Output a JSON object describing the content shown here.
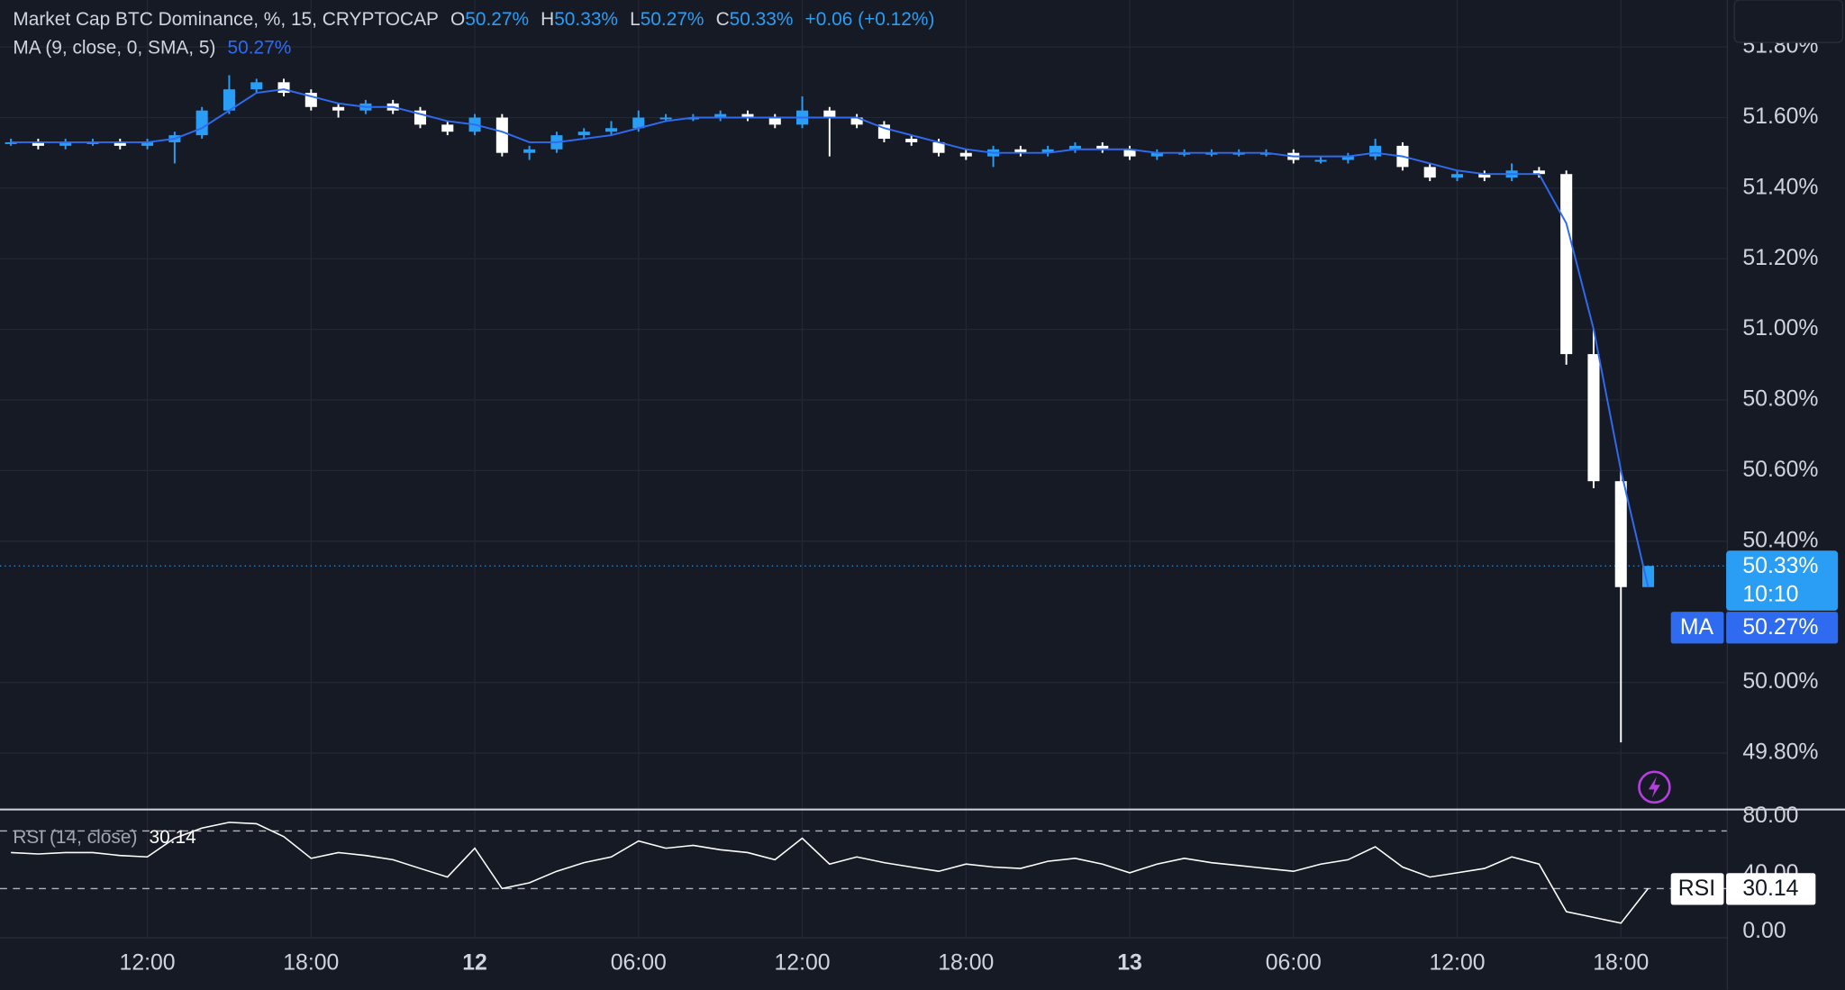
{
  "chart_data": {
    "type": "candlestick",
    "title": "Market Cap BTC Dominance, %, 15, CRYPTOCAP",
    "ohlc_legend": [
      {
        "label": "O",
        "value": "50.27%"
      },
      {
        "label": "H",
        "value": "50.33%"
      },
      {
        "label": "L",
        "value": "50.27%"
      },
      {
        "label": "C",
        "value": "50.33%"
      }
    ],
    "change": "+0.06 (+0.12%)",
    "up_color": "#2a9df4",
    "down_color": "#ffffff",
    "grid": true,
    "x": [
      7,
      8,
      9,
      10,
      11,
      12,
      13,
      14,
      15,
      16,
      17,
      18,
      19,
      20,
      21,
      22,
      23,
      24,
      25,
      26,
      27,
      28,
      29,
      30,
      31,
      32,
      33,
      34,
      35,
      36,
      37,
      38,
      39,
      40,
      41,
      42,
      43,
      44,
      45,
      46,
      47,
      48,
      49,
      50,
      51,
      52,
      53,
      54,
      55,
      56,
      57,
      58,
      59,
      60,
      61,
      62,
      63,
      64,
      65,
      66,
      67
    ],
    "open": [
      51.53,
      51.53,
      51.52,
      51.53,
      51.53,
      51.52,
      51.53,
      51.55,
      51.62,
      51.68,
      51.7,
      51.67,
      51.63,
      51.62,
      51.64,
      51.62,
      51.58,
      51.56,
      51.6,
      51.5,
      51.51,
      51.55,
      51.56,
      51.57,
      51.6,
      51.6,
      51.6,
      51.61,
      51.6,
      51.58,
      51.62,
      51.6,
      51.58,
      51.54,
      51.53,
      51.5,
      51.49,
      51.51,
      51.5,
      51.51,
      51.52,
      51.51,
      51.49,
      51.5,
      51.5,
      51.5,
      51.5,
      51.5,
      51.48,
      51.48,
      51.49,
      51.52,
      51.46,
      51.43,
      51.44,
      51.43,
      51.45,
      51.44,
      50.93,
      50.57,
      50.27
    ],
    "high": [
      51.54,
      51.54,
      51.54,
      51.54,
      51.54,
      51.54,
      51.56,
      51.63,
      51.72,
      51.71,
      51.71,
      51.68,
      51.64,
      51.65,
      51.65,
      51.63,
      51.59,
      51.61,
      51.61,
      51.52,
      51.56,
      51.57,
      51.59,
      51.62,
      51.61,
      51.61,
      51.62,
      51.62,
      51.61,
      51.66,
      51.63,
      51.61,
      51.59,
      51.55,
      51.54,
      51.51,
      51.52,
      51.52,
      51.52,
      51.53,
      51.53,
      51.52,
      51.51,
      51.51,
      51.51,
      51.51,
      51.51,
      51.51,
      51.49,
      51.5,
      51.54,
      51.53,
      51.47,
      51.45,
      51.45,
      51.47,
      51.46,
      51.45,
      51.0,
      50.6,
      50.33
    ],
    "low": [
      51.52,
      51.51,
      51.51,
      51.52,
      51.51,
      51.51,
      51.47,
      51.54,
      51.61,
      51.67,
      51.66,
      51.62,
      51.6,
      51.61,
      51.61,
      51.57,
      51.55,
      51.55,
      51.49,
      51.48,
      51.5,
      51.54,
      51.55,
      51.56,
      51.59,
      51.59,
      51.59,
      51.59,
      51.57,
      51.57,
      51.49,
      51.57,
      51.53,
      51.52,
      51.49,
      51.48,
      51.46,
      51.49,
      51.49,
      51.5,
      51.5,
      51.48,
      51.48,
      51.49,
      51.49,
      51.49,
      51.49,
      51.47,
      51.47,
      51.47,
      51.48,
      51.45,
      51.42,
      51.42,
      51.42,
      51.42,
      51.43,
      50.9,
      50.55,
      49.83,
      50.27
    ],
    "close": [
      51.53,
      51.52,
      51.53,
      51.53,
      51.52,
      51.53,
      51.55,
      51.62,
      51.68,
      51.7,
      51.67,
      51.63,
      51.62,
      51.64,
      51.62,
      51.58,
      51.56,
      51.6,
      51.5,
      51.51,
      51.55,
      51.56,
      51.57,
      51.6,
      51.6,
      51.6,
      51.61,
      51.6,
      51.58,
      51.62,
      51.6,
      51.58,
      51.54,
      51.53,
      51.5,
      51.49,
      51.51,
      51.5,
      51.51,
      51.52,
      51.51,
      51.49,
      51.5,
      51.5,
      51.5,
      51.5,
      51.5,
      51.48,
      51.48,
      51.49,
      51.52,
      51.46,
      51.43,
      51.44,
      51.43,
      51.45,
      51.44,
      50.93,
      50.57,
      50.27,
      50.33
    ],
    "ma": {
      "name": "MA (9, close, 0, SMA, 5)",
      "value_label": "50.27%",
      "color": "#2f6bf0",
      "tag": "MA",
      "tag_value": "50.27%",
      "values": [
        51.53,
        51.53,
        51.53,
        51.53,
        51.53,
        51.53,
        51.54,
        51.57,
        51.62,
        51.67,
        51.68,
        51.66,
        51.64,
        51.63,
        51.63,
        51.61,
        51.59,
        51.58,
        51.56,
        51.53,
        51.53,
        51.54,
        51.55,
        51.57,
        51.59,
        51.6,
        51.6,
        51.6,
        51.6,
        51.6,
        51.6,
        51.6,
        51.57,
        51.55,
        51.53,
        51.51,
        51.5,
        51.5,
        51.5,
        51.51,
        51.51,
        51.51,
        51.5,
        51.5,
        51.5,
        51.5,
        51.5,
        51.49,
        51.49,
        51.49,
        51.5,
        51.49,
        51.47,
        51.45,
        51.44,
        51.44,
        51.44,
        51.3,
        51.0,
        50.6,
        50.27
      ]
    },
    "last_price_label": "50.33%",
    "countdown": "10:10",
    "xlim": [
      6.6,
      69.9
    ],
    "xticks": [
      {
        "value": 12,
        "label": "12:00"
      },
      {
        "value": 18,
        "label": "18:00"
      },
      {
        "value": 24,
        "label": "12"
      },
      {
        "value": 30,
        "label": "06:00"
      },
      {
        "value": 36,
        "label": "12:00"
      },
      {
        "value": 42,
        "label": "18:00"
      },
      {
        "value": 48,
        "label": "13"
      },
      {
        "value": 54,
        "label": "06:00"
      },
      {
        "value": 60,
        "label": "12:00"
      },
      {
        "value": 66,
        "label": "18:00"
      }
    ],
    "ylim": [
      49.64,
      51.933
    ],
    "yticks": [
      {
        "value": 51.8,
        "label": "51.80%"
      },
      {
        "value": 51.6,
        "label": "51.60%"
      },
      {
        "value": 51.4,
        "label": "51.40%"
      },
      {
        "value": 51.2,
        "label": "51.20%"
      },
      {
        "value": 51,
        "label": "51.00%"
      },
      {
        "value": 50.8,
        "label": "50.80%"
      },
      {
        "value": 50.6,
        "label": "50.60%"
      },
      {
        "value": 50.4,
        "label": "50.40%"
      },
      {
        "value": 50,
        "label": "50.00%"
      },
      {
        "value": 49.8,
        "label": "49.80%"
      }
    ],
    "rsi": {
      "name": "RSI (14, close)",
      "value_label": "30.14",
      "tag": "RSI",
      "color": "#ffffff",
      "ylim": [
        -4.1,
        84.9
      ],
      "bands": [
        70,
        30
      ],
      "yticks": [
        {
          "value": 80,
          "label": "80.00"
        },
        {
          "value": 40,
          "label": "40.00"
        },
        {
          "value": 0,
          "label": "0.00"
        }
      ],
      "values": [
        55,
        54,
        55,
        55,
        53,
        52,
        65,
        72,
        76,
        75,
        66,
        51,
        55,
        53,
        50,
        44,
        38,
        58,
        30,
        34,
        42,
        48,
        52,
        63,
        58,
        60,
        57,
        55,
        50,
        65,
        47,
        52,
        48,
        45,
        42,
        47,
        45,
        44,
        49,
        51,
        47,
        41,
        47,
        51,
        48,
        46,
        44,
        42,
        47,
        50,
        59,
        45,
        38,
        41,
        44,
        52,
        47,
        14,
        10,
        6,
        30.14
      ]
    }
  }
}
